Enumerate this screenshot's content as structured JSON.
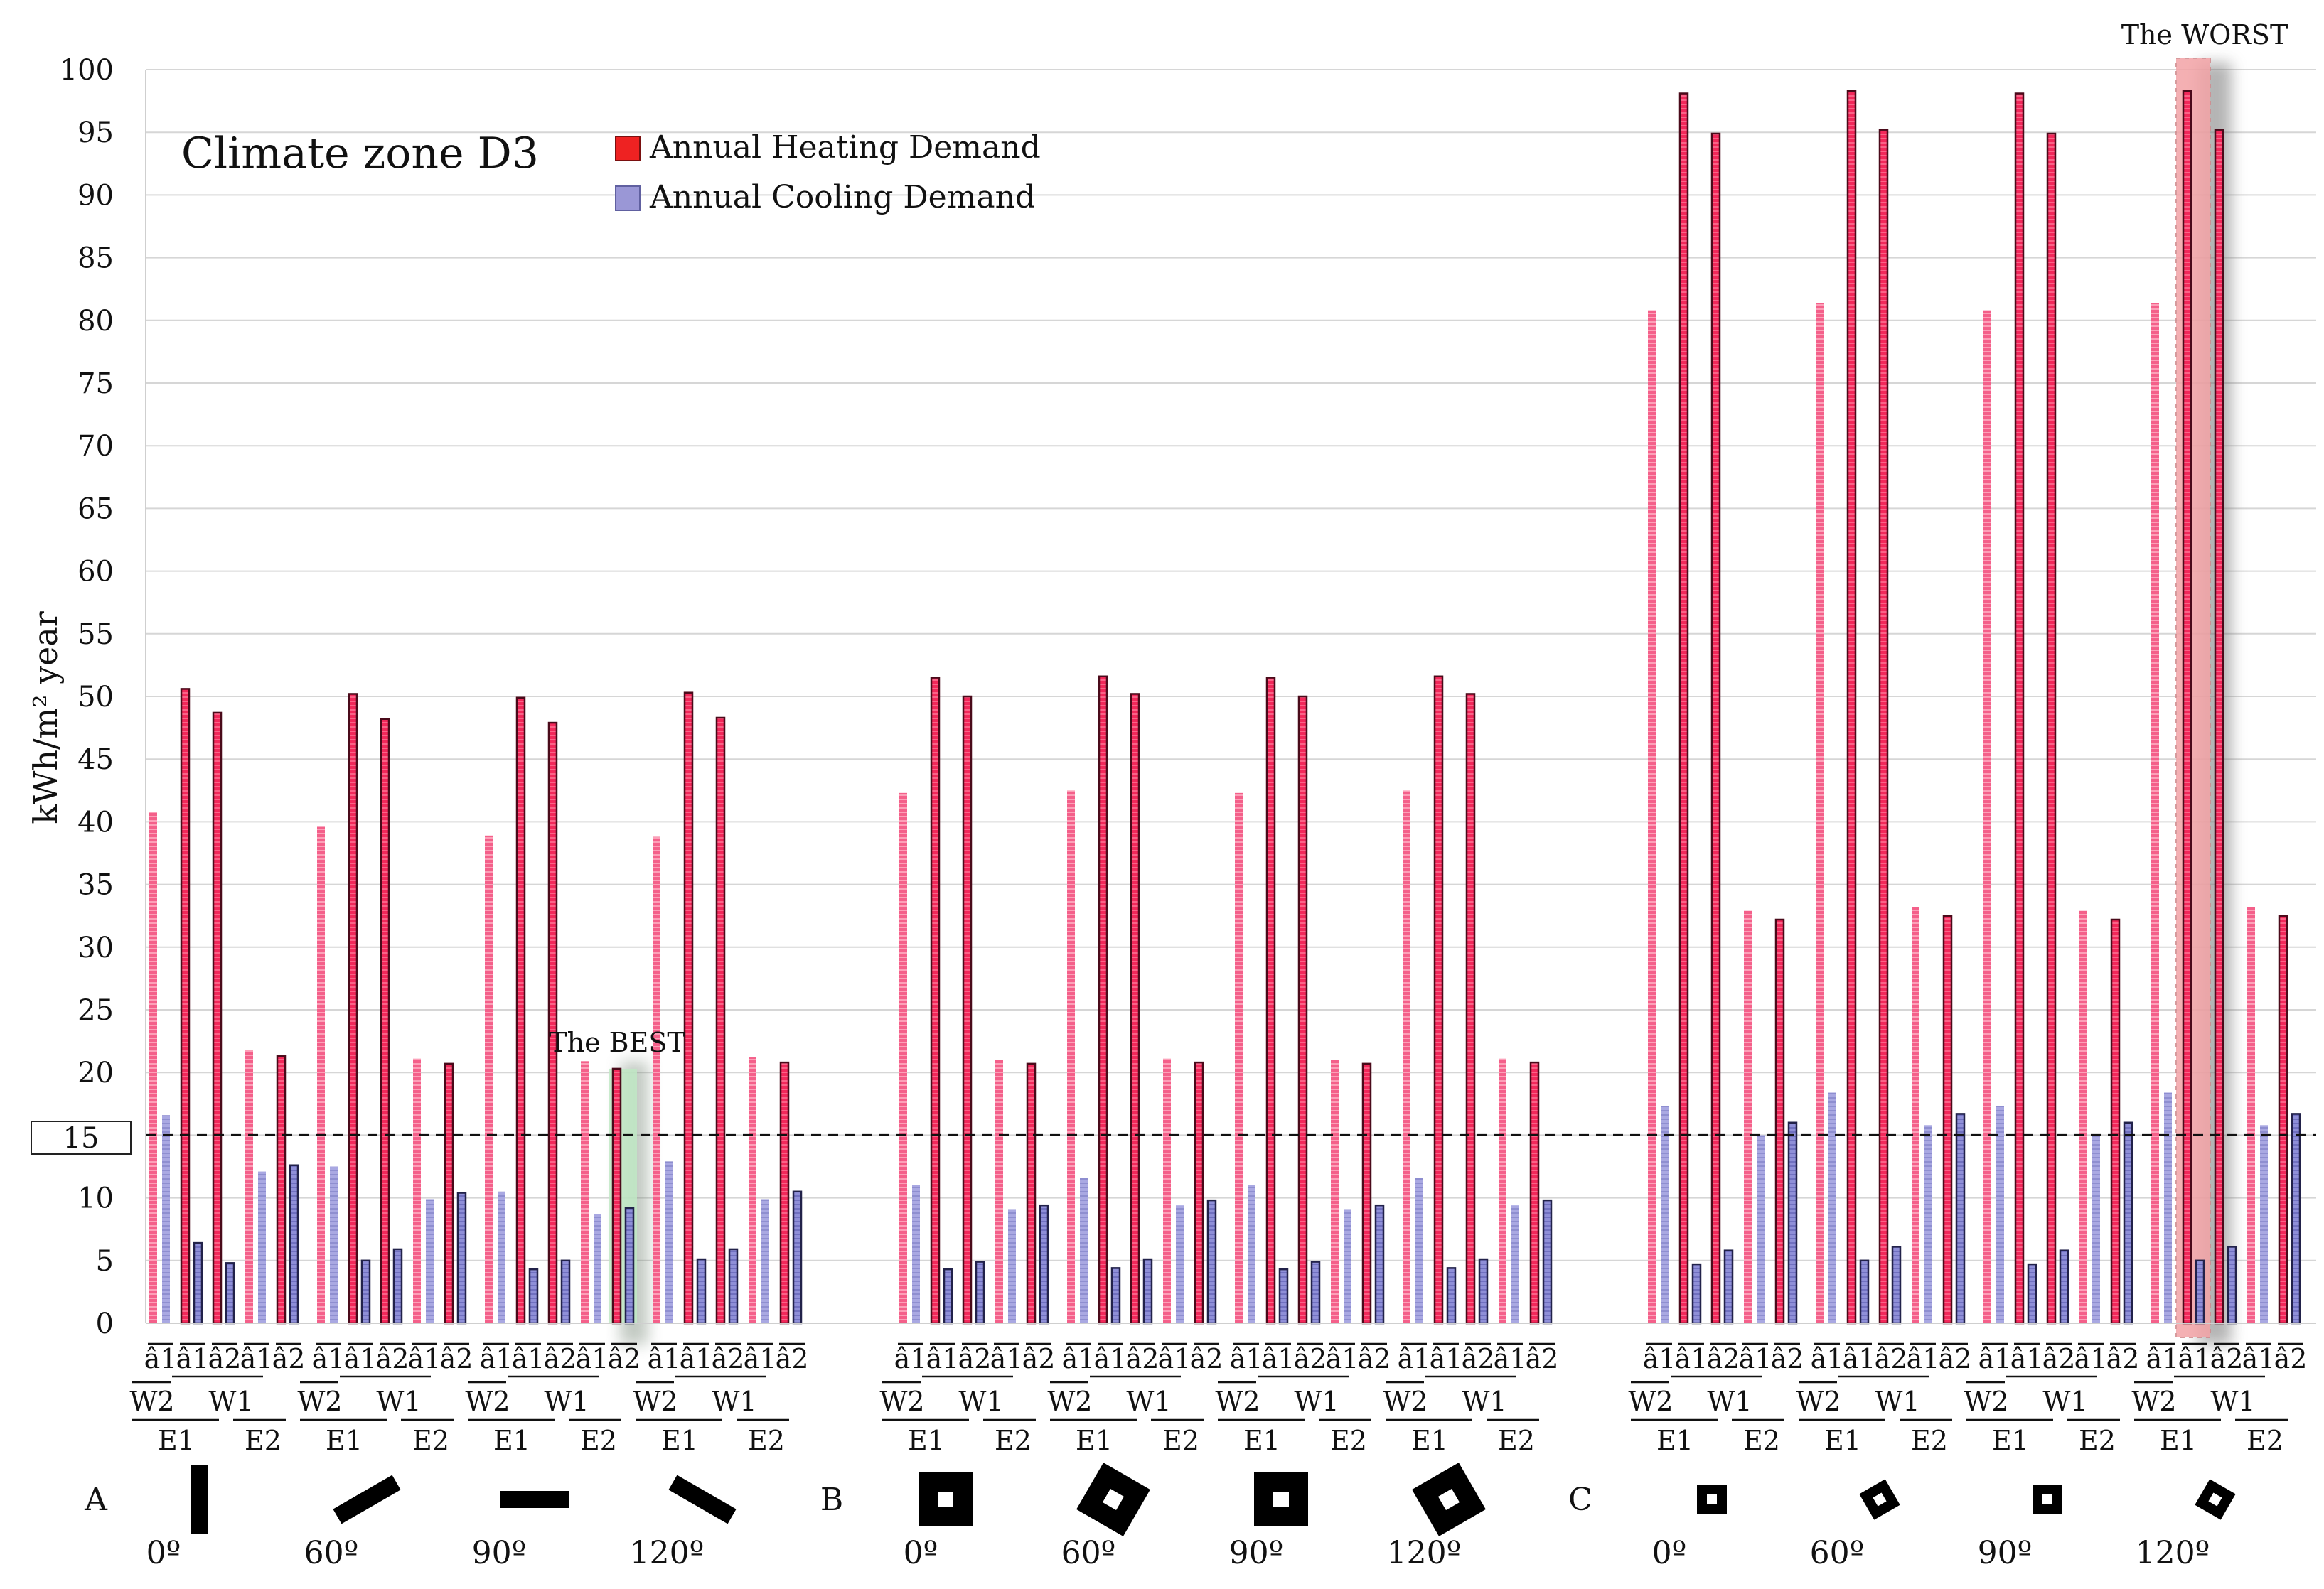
{
  "chart_data": {
    "type": "bar",
    "title": "Climate zone D3",
    "ylabel": "kWh/m² year",
    "ylim": [
      0,
      100
    ],
    "ytick_step": 5,
    "grid": true,
    "legend_position": "top-left",
    "threshold": {
      "value": 15,
      "label": "15",
      "style": "dashed"
    },
    "x_sublabels": [
      "â1",
      "â1",
      "â2",
      "â1",
      "â2"
    ],
    "x_row2": {
      "left": "W2",
      "right": "W1"
    },
    "x_row3": {
      "left": "E1",
      "right": "E2"
    },
    "series": [
      {
        "name": "Annual Heating Demand",
        "color": "#f2285a",
        "legend_color": "#ee2222"
      },
      {
        "name": "Annual Cooling Demand",
        "color": "#8f8fd8",
        "legend_color": "#9a97d6"
      }
    ],
    "groups": [
      {
        "label": "A",
        "orientations": [
          {
            "angle": "0º",
            "rotation": 90,
            "heating": [
              40.8,
              50.6,
              48.7,
              21.8,
              21.3
            ],
            "cooling": [
              16.6,
              6.4,
              4.8,
              12.1,
              12.6
            ]
          },
          {
            "angle": "60º",
            "rotation": -30,
            "heating": [
              39.6,
              50.2,
              48.2,
              21.1,
              20.7
            ],
            "cooling": [
              12.5,
              5.0,
              5.9,
              9.9,
              10.4
            ]
          },
          {
            "angle": "90º",
            "rotation": 0,
            "heating": [
              38.9,
              49.9,
              47.9,
              20.9,
              20.3
            ],
            "cooling": [
              10.5,
              4.3,
              5.0,
              8.7,
              9.2
            ]
          },
          {
            "angle": "120º",
            "rotation": 30,
            "heating": [
              38.8,
              50.3,
              48.3,
              21.2,
              20.8
            ],
            "cooling": [
              12.9,
              5.1,
              5.9,
              9.9,
              10.5
            ]
          }
        ]
      },
      {
        "label": "B",
        "orientations": [
          {
            "angle": "0º",
            "rotation": 0,
            "heating": [
              42.3,
              51.5,
              50.0,
              21.0,
              20.7
            ],
            "cooling": [
              11.0,
              4.3,
              4.9,
              9.1,
              9.4
            ]
          },
          {
            "angle": "60º",
            "rotation": 30,
            "heating": [
              42.5,
              51.6,
              50.2,
              21.1,
              20.8
            ],
            "cooling": [
              11.6,
              4.4,
              5.1,
              9.4,
              9.8
            ]
          },
          {
            "angle": "90º",
            "rotation": 0,
            "heating": [
              42.3,
              51.5,
              50.0,
              21.0,
              20.7
            ],
            "cooling": [
              11.0,
              4.3,
              4.9,
              9.1,
              9.4
            ]
          },
          {
            "angle": "120º",
            "rotation": -30,
            "heating": [
              42.5,
              51.6,
              50.2,
              21.1,
              20.8
            ],
            "cooling": [
              11.6,
              4.4,
              5.1,
              9.4,
              9.8
            ]
          }
        ]
      },
      {
        "label": "C",
        "orientations": [
          {
            "angle": "0º",
            "rotation": 0,
            "heating": [
              80.8,
              98.1,
              94.9,
              32.9,
              32.2
            ],
            "cooling": [
              17.3,
              4.7,
              5.8,
              15.0,
              16.0
            ]
          },
          {
            "angle": "60º",
            "rotation": -30,
            "heating": [
              81.4,
              98.3,
              95.2,
              33.2,
              32.5
            ],
            "cooling": [
              18.4,
              5.0,
              6.1,
              15.8,
              16.7
            ]
          },
          {
            "angle": "90º",
            "rotation": 0,
            "heating": [
              80.8,
              98.1,
              94.9,
              32.9,
              32.2
            ],
            "cooling": [
              17.3,
              4.7,
              5.8,
              15.0,
              16.0
            ]
          },
          {
            "angle": "120º",
            "rotation": 30,
            "heating": [
              81.4,
              98.3,
              95.2,
              33.2,
              32.5
            ],
            "cooling": [
              18.4,
              5.0,
              6.1,
              15.8,
              16.7
            ]
          }
        ]
      }
    ],
    "annotations": [
      {
        "text": "The BEST",
        "group": 0,
        "orientation": 2,
        "config": 4
      },
      {
        "text": "The WORST",
        "group": 2,
        "orientation": 3,
        "config": 1
      }
    ]
  }
}
